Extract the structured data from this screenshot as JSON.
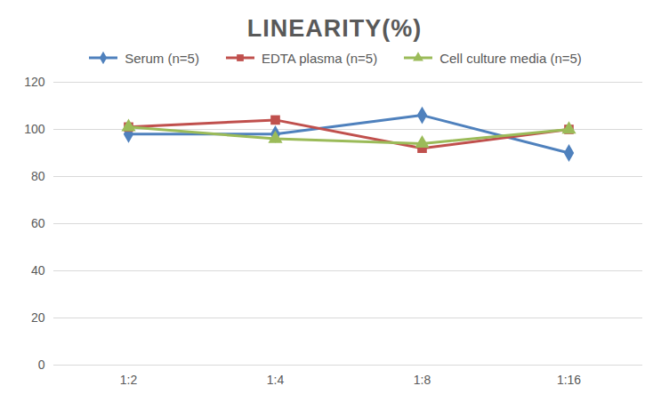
{
  "chart_data": {
    "type": "line",
    "title": "LINEARITY(%)",
    "categories": [
      "1:2",
      "1:4",
      "1:8",
      "1:16"
    ],
    "series": [
      {
        "name": "Serum (n=5)",
        "color": "#4f81bd",
        "marker": "diamond",
        "values": [
          98,
          98,
          106,
          90
        ]
      },
      {
        "name": "EDTA plasma (n=5)",
        "color": "#c0504d",
        "marker": "square",
        "values": [
          101,
          104,
          92,
          100
        ]
      },
      {
        "name": "Cell culture media (n=5)",
        "color": "#9bbb59",
        "marker": "triangle",
        "values": [
          101,
          96,
          94,
          100
        ]
      }
    ],
    "ylim": [
      0,
      120
    ],
    "yticks": [
      0,
      20,
      40,
      60,
      80,
      100,
      120
    ],
    "grid": true,
    "legend": "top"
  }
}
